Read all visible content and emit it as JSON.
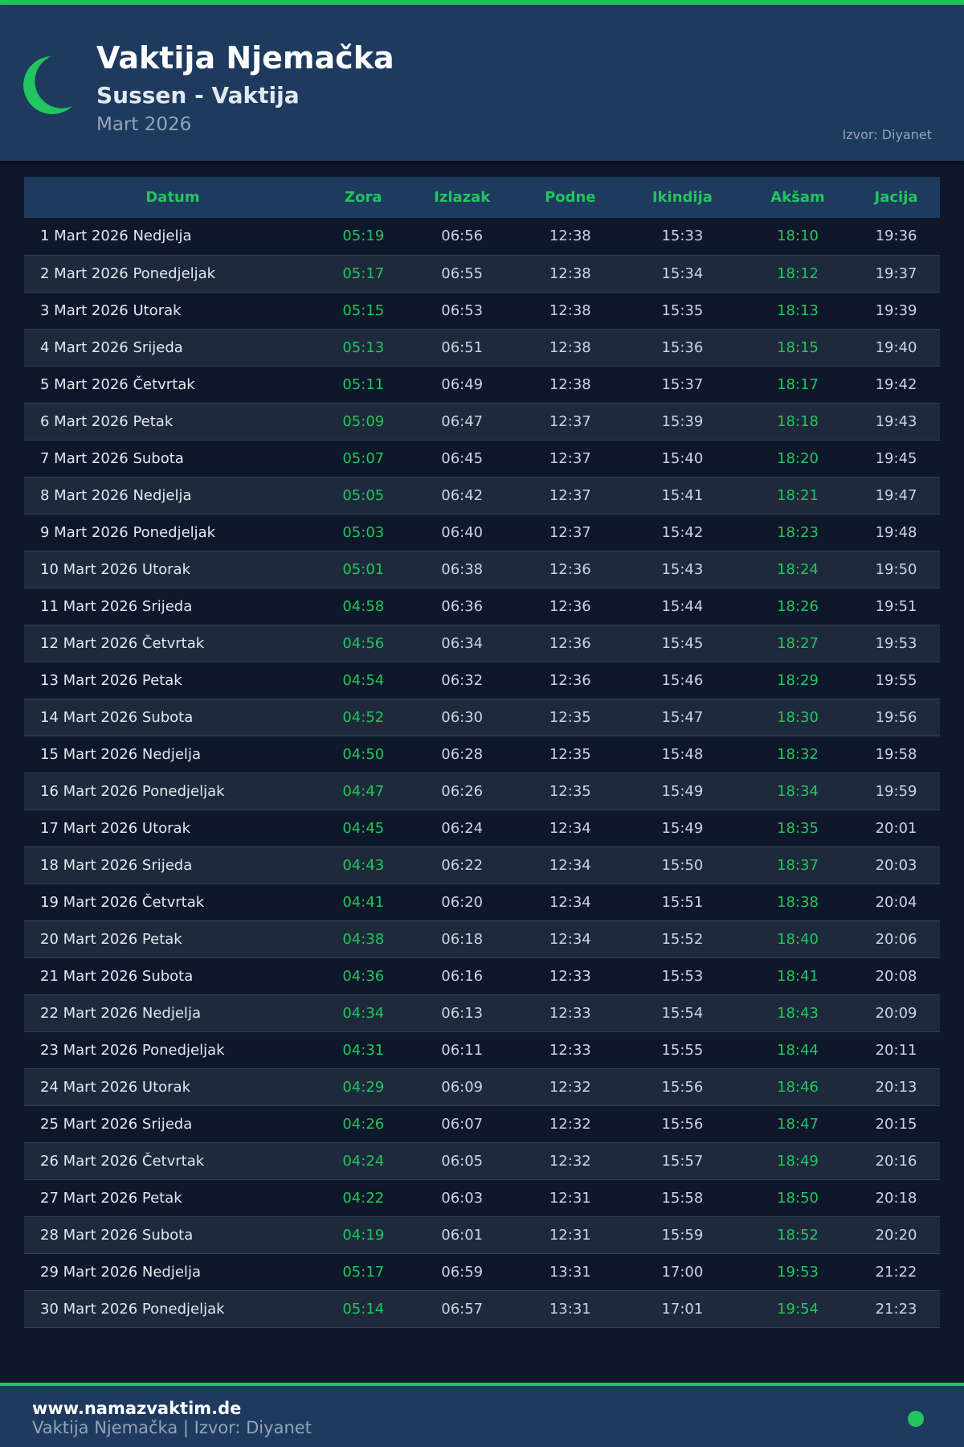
{
  "header": {
    "title": "Vaktija Njemačka",
    "subtitle": "Sussen - Vaktija",
    "month": "Mart 2026",
    "source": "Izvor: Diyanet"
  },
  "colors": {
    "accent": "#22c55e",
    "header_bg": "#1e3a5f",
    "page_bg": "#0f172a"
  },
  "table": {
    "columns": [
      "Datum",
      "Zora",
      "Izlazak",
      "Podne",
      "Ikindija",
      "Akšam",
      "Jacija"
    ],
    "rows": [
      [
        "1 Mart 2026 Nedjelja",
        "05:19",
        "06:56",
        "12:38",
        "15:33",
        "18:10",
        "19:36"
      ],
      [
        "2 Mart 2026 Ponedjeljak",
        "05:17",
        "06:55",
        "12:38",
        "15:34",
        "18:12",
        "19:37"
      ],
      [
        "3 Mart 2026 Utorak",
        "05:15",
        "06:53",
        "12:38",
        "15:35",
        "18:13",
        "19:39"
      ],
      [
        "4 Mart 2026 Srijeda",
        "05:13",
        "06:51",
        "12:38",
        "15:36",
        "18:15",
        "19:40"
      ],
      [
        "5 Mart 2026 Četvrtak",
        "05:11",
        "06:49",
        "12:38",
        "15:37",
        "18:17",
        "19:42"
      ],
      [
        "6 Mart 2026 Petak",
        "05:09",
        "06:47",
        "12:37",
        "15:39",
        "18:18",
        "19:43"
      ],
      [
        "7 Mart 2026 Subota",
        "05:07",
        "06:45",
        "12:37",
        "15:40",
        "18:20",
        "19:45"
      ],
      [
        "8 Mart 2026 Nedjelja",
        "05:05",
        "06:42",
        "12:37",
        "15:41",
        "18:21",
        "19:47"
      ],
      [
        "9 Mart 2026 Ponedjeljak",
        "05:03",
        "06:40",
        "12:37",
        "15:42",
        "18:23",
        "19:48"
      ],
      [
        "10 Mart 2026 Utorak",
        "05:01",
        "06:38",
        "12:36",
        "15:43",
        "18:24",
        "19:50"
      ],
      [
        "11 Mart 2026 Srijeda",
        "04:58",
        "06:36",
        "12:36",
        "15:44",
        "18:26",
        "19:51"
      ],
      [
        "12 Mart 2026 Četvrtak",
        "04:56",
        "06:34",
        "12:36",
        "15:45",
        "18:27",
        "19:53"
      ],
      [
        "13 Mart 2026 Petak",
        "04:54",
        "06:32",
        "12:36",
        "15:46",
        "18:29",
        "19:55"
      ],
      [
        "14 Mart 2026 Subota",
        "04:52",
        "06:30",
        "12:35",
        "15:47",
        "18:30",
        "19:56"
      ],
      [
        "15 Mart 2026 Nedjelja",
        "04:50",
        "06:28",
        "12:35",
        "15:48",
        "18:32",
        "19:58"
      ],
      [
        "16 Mart 2026 Ponedjeljak",
        "04:47",
        "06:26",
        "12:35",
        "15:49",
        "18:34",
        "19:59"
      ],
      [
        "17 Mart 2026 Utorak",
        "04:45",
        "06:24",
        "12:34",
        "15:49",
        "18:35",
        "20:01"
      ],
      [
        "18 Mart 2026 Srijeda",
        "04:43",
        "06:22",
        "12:34",
        "15:50",
        "18:37",
        "20:03"
      ],
      [
        "19 Mart 2026 Četvrtak",
        "04:41",
        "06:20",
        "12:34",
        "15:51",
        "18:38",
        "20:04"
      ],
      [
        "20 Mart 2026 Petak",
        "04:38",
        "06:18",
        "12:34",
        "15:52",
        "18:40",
        "20:06"
      ],
      [
        "21 Mart 2026 Subota",
        "04:36",
        "06:16",
        "12:33",
        "15:53",
        "18:41",
        "20:08"
      ],
      [
        "22 Mart 2026 Nedjelja",
        "04:34",
        "06:13",
        "12:33",
        "15:54",
        "18:43",
        "20:09"
      ],
      [
        "23 Mart 2026 Ponedjeljak",
        "04:31",
        "06:11",
        "12:33",
        "15:55",
        "18:44",
        "20:11"
      ],
      [
        "24 Mart 2026 Utorak",
        "04:29",
        "06:09",
        "12:32",
        "15:56",
        "18:46",
        "20:13"
      ],
      [
        "25 Mart 2026 Srijeda",
        "04:26",
        "06:07",
        "12:32",
        "15:56",
        "18:47",
        "20:15"
      ],
      [
        "26 Mart 2026 Četvrtak",
        "04:24",
        "06:05",
        "12:32",
        "15:57",
        "18:49",
        "20:16"
      ],
      [
        "27 Mart 2026 Petak",
        "04:22",
        "06:03",
        "12:31",
        "15:58",
        "18:50",
        "20:18"
      ],
      [
        "28 Mart 2026 Subota",
        "04:19",
        "06:01",
        "12:31",
        "15:59",
        "18:52",
        "20:20"
      ],
      [
        "29 Mart 2026 Nedjelja",
        "05:17",
        "06:59",
        "13:31",
        "17:00",
        "19:53",
        "21:22"
      ],
      [
        "30 Mart 2026 Ponedjeljak",
        "05:14",
        "06:57",
        "13:31",
        "17:01",
        "19:54",
        "21:23"
      ]
    ]
  },
  "footer": {
    "site": "www.namazvaktim.de",
    "text": "Vaktija Njemačka | Izvor: Diyanet"
  }
}
